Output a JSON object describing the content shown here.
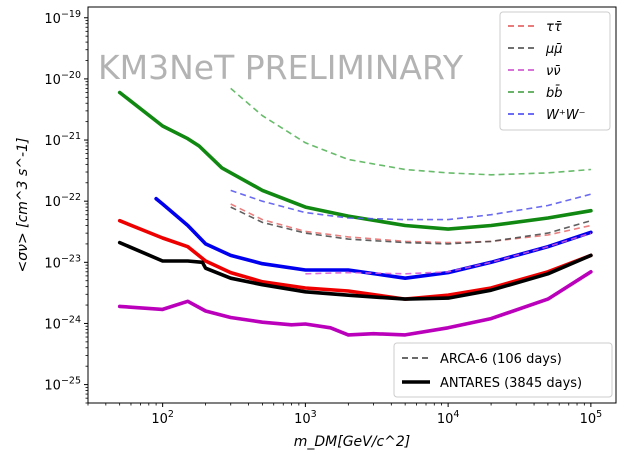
{
  "chart_data": {
    "type": "line",
    "watermark": "KM3NeT PRELIMINARY",
    "xlabel": "m_DM[GeV/c^2]",
    "ylabel": "<σν> [cm^3 s^-1]",
    "xscale": "log",
    "yscale": "log",
    "xlim": [
      30,
      150000
    ],
    "ylim": [
      5e-26,
      1.5e-19
    ],
    "x_ticks": [
      {
        "value": 100,
        "base": "10",
        "exp": "2"
      },
      {
        "value": 1000,
        "base": "10",
        "exp": "3"
      },
      {
        "value": 10000,
        "base": "10",
        "exp": "4"
      },
      {
        "value": 100000,
        "base": "10",
        "exp": "5"
      }
    ],
    "y_ticks": [
      {
        "value": 1e-25,
        "base": "10",
        "exp": "−25"
      },
      {
        "value": 1e-24,
        "base": "10",
        "exp": "−24"
      },
      {
        "value": 1e-23,
        "base": "10",
        "exp": "−23"
      },
      {
        "value": 1e-22,
        "base": "10",
        "exp": "−22"
      },
      {
        "value": 1e-21,
        "base": "10",
        "exp": "−21"
      },
      {
        "value": 1e-20,
        "base": "10",
        "exp": "−20"
      },
      {
        "value": 1e-19,
        "base": "10",
        "exp": "−19"
      }
    ],
    "grid": false,
    "channel_legend": {
      "placement": "top-right",
      "entries": [
        {
          "label": "ττ̄",
          "color": "#e05050"
        },
        {
          "label": "μμ̄",
          "color": "#404040"
        },
        {
          "label": "νν̄",
          "color": "#cc44cc"
        },
        {
          "label": "bb̄",
          "color": "#3a9a3a"
        },
        {
          "label": "W⁺W⁻",
          "color": "#3c3cf0"
        }
      ]
    },
    "experiment_legend": {
      "placement": "lower-right",
      "entries": [
        {
          "label": "ARCA-6 (106 days)",
          "style": "dashed",
          "color": "#555555"
        },
        {
          "label": "ANTARES (3845 days)",
          "style": "solid",
          "color": "#000000"
        }
      ]
    },
    "series": [
      {
        "channel": "bb̄",
        "experiment": "ANTARES",
        "color": "#118811",
        "x": [
          50,
          100,
          150,
          180,
          260,
          500,
          1000,
          2000,
          5000,
          10000,
          20000,
          50000,
          100000
        ],
        "y": [
          6e-21,
          1.7e-21,
          1.05e-21,
          8e-22,
          3.5e-22,
          1.5e-22,
          8e-23,
          5.7e-23,
          4e-23,
          3.5e-23,
          4e-23,
          5.3e-23,
          7e-23
        ]
      },
      {
        "channel": "W⁺W⁻",
        "experiment": "ANTARES",
        "color": "#0000ee",
        "x": [
          90,
          100,
          150,
          200,
          300,
          500,
          1000,
          2000,
          5000,
          10000,
          20000,
          50000,
          100000
        ],
        "y": [
          1.1e-22,
          9e-23,
          4e-23,
          2e-23,
          1.3e-23,
          9.5e-24,
          7.5e-24,
          7.5e-24,
          5.5e-24,
          6.8e-24,
          1e-23,
          1.8e-23,
          3.1e-23
        ]
      },
      {
        "channel": "ττ̄",
        "experiment": "ANTARES",
        "color": "#ee0000",
        "x": [
          50,
          100,
          150,
          200,
          300,
          500,
          1000,
          2000,
          5000,
          10000,
          20000,
          50000,
          100000
        ],
        "y": [
          4.8e-23,
          2.5e-23,
          1.8e-23,
          1.05e-23,
          6.8e-24,
          4.8e-24,
          3.8e-24,
          3.4e-24,
          2.5e-24,
          2.9e-24,
          3.8e-24,
          7e-24,
          1.3e-23
        ]
      },
      {
        "channel": "μμ̄",
        "experiment": "ANTARES",
        "color": "#000000",
        "x": [
          50,
          100,
          150,
          190,
          200,
          300,
          500,
          1000,
          2000,
          5000,
          10000,
          20000,
          50000,
          100000
        ],
        "y": [
          2.1e-23,
          1.05e-23,
          1.05e-23,
          1e-23,
          8e-24,
          5.5e-24,
          4.3e-24,
          3.3e-24,
          2.9e-24,
          2.5e-24,
          2.6e-24,
          3.5e-24,
          6.5e-24,
          1.3e-23
        ]
      },
      {
        "channel": "νν̄",
        "experiment": "ANTARES",
        "color": "#bb00bb",
        "x": [
          50,
          100,
          150,
          200,
          300,
          500,
          800,
          1000,
          1500,
          2000,
          3000,
          5000,
          10000,
          20000,
          50000,
          100000
        ],
        "y": [
          1.9e-24,
          1.7e-24,
          2.3e-24,
          1.6e-24,
          1.25e-24,
          1.05e-24,
          9.5e-25,
          9.8e-25,
          8.5e-25,
          6.5e-25,
          6.8e-25,
          6.5e-25,
          8.5e-25,
          1.2e-24,
          2.5e-24,
          7e-24
        ]
      },
      {
        "channel": "bb̄",
        "experiment": "ARCA-6",
        "color": "#4caf50",
        "x": [
          300,
          500,
          1000,
          2000,
          5000,
          10000,
          20000,
          50000,
          100000
        ],
        "y": [
          7e-21,
          2.5e-21,
          9e-22,
          4.8e-22,
          3.3e-22,
          2.9e-22,
          2.7e-22,
          2.9e-22,
          3.3e-22
        ]
      },
      {
        "channel": "W⁺W⁻",
        "experiment": "ARCA-6",
        "color": "#5050f0",
        "x": [
          300,
          500,
          1000,
          2000,
          5000,
          10000,
          20000,
          50000,
          100000
        ],
        "y": [
          1.5e-22,
          1e-22,
          6.5e-23,
          5.3e-23,
          5e-23,
          5e-23,
          6e-23,
          8.5e-23,
          1.3e-22
        ]
      },
      {
        "channel": "ττ̄",
        "experiment": "ARCA-6",
        "color": "#e86a6a",
        "x": [
          300,
          500,
          1000,
          2000,
          5000,
          10000,
          20000,
          50000,
          100000
        ],
        "y": [
          9e-23,
          5e-23,
          3.2e-23,
          2.6e-23,
          2.2e-23,
          2.1e-23,
          2.2e-23,
          2.8e-23,
          4e-23
        ]
      },
      {
        "channel": "μμ̄",
        "experiment": "ARCA-6",
        "color": "#444444",
        "x": [
          300,
          500,
          1000,
          2000,
          5000,
          10000,
          20000,
          50000,
          100000
        ],
        "y": [
          8e-23,
          4.5e-23,
          3e-23,
          2.4e-23,
          2.1e-23,
          2e-23,
          2.2e-23,
          3e-23,
          4.8e-23
        ]
      },
      {
        "channel": "νν̄",
        "experiment": "ARCA-6",
        "color": "#d855d8",
        "x": [
          1000,
          2000,
          5000,
          10000,
          20000,
          50000,
          100000
        ],
        "y": [
          6.5e-24,
          6.8e-24,
          6.5e-24,
          7e-24,
          1e-23,
          1.8e-23,
          3e-23
        ]
      }
    ]
  }
}
